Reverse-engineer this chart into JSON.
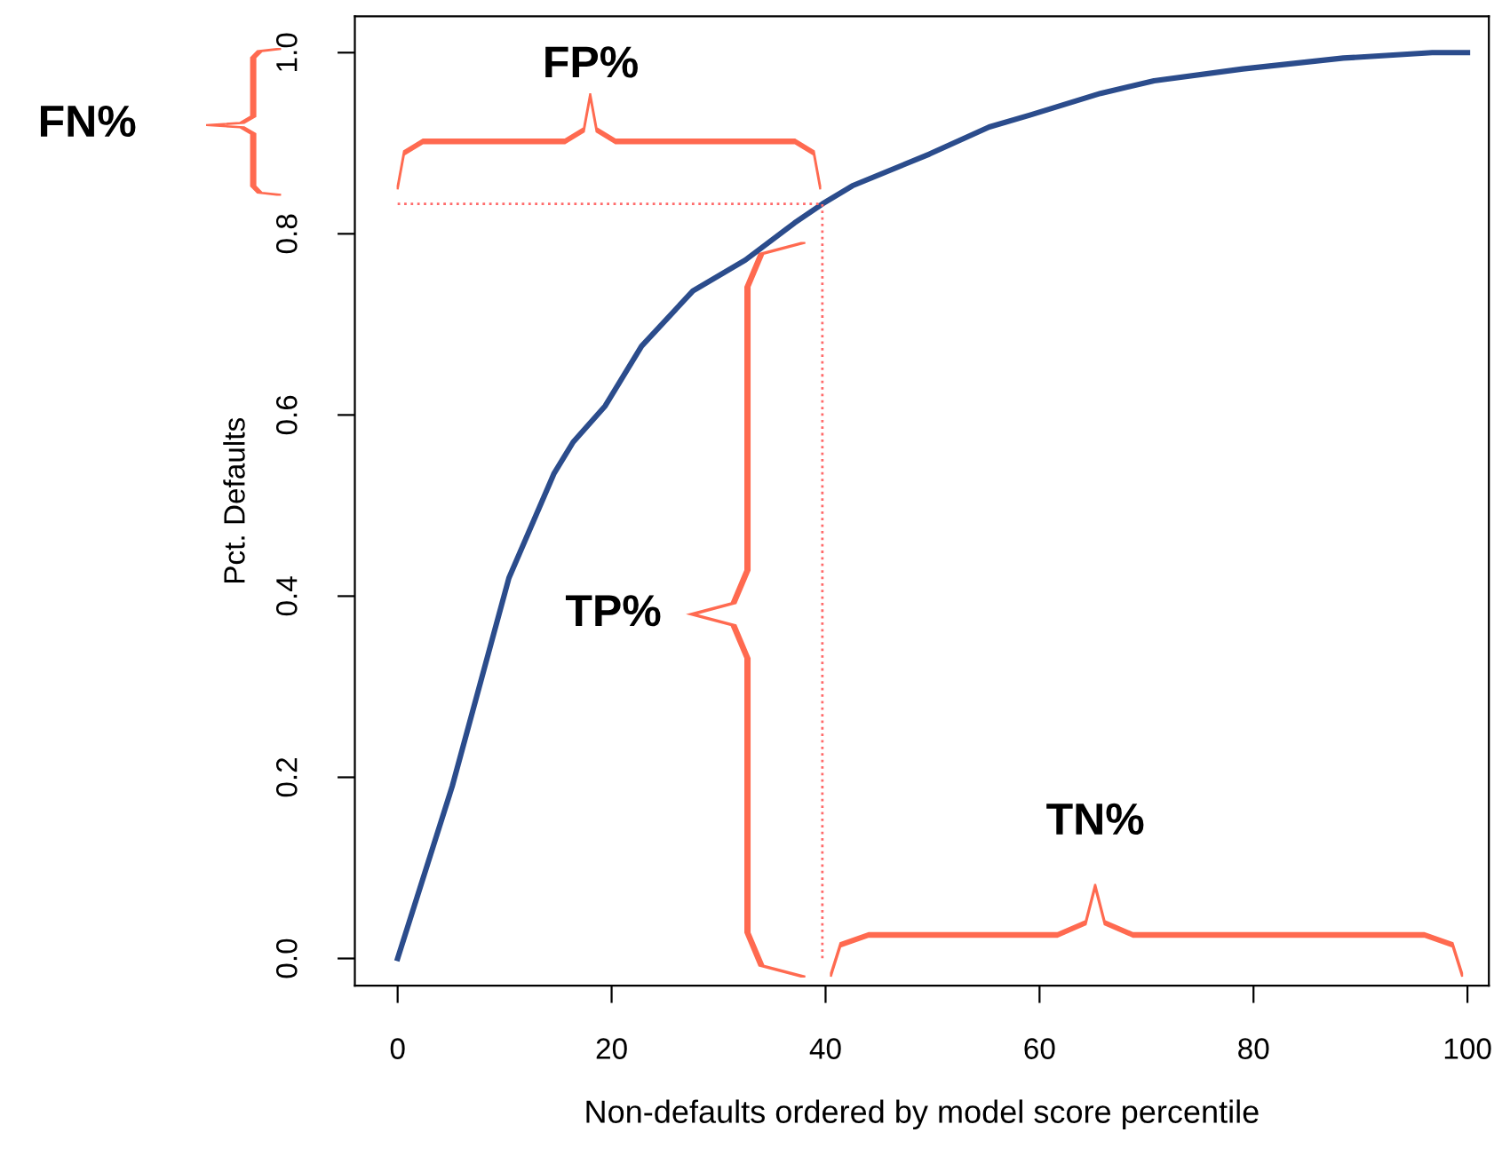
{
  "chart_data": {
    "type": "line",
    "xlabel": "Non-defaults ordered by model score percentile",
    "ylabel": "Pct. Defaults",
    "xlim": [
      -4,
      102
    ],
    "ylim": [
      -0.03,
      1.04
    ],
    "xticks": [
      0,
      20,
      40,
      60,
      80,
      100
    ],
    "yticks": [
      {
        "value": 0,
        "label": "0.0"
      },
      0.2,
      0.4,
      0.6,
      0.8,
      {
        "value": 1,
        "label": "1.0"
      }
    ],
    "grid": false,
    "legend": false,
    "series": [
      {
        "color": "#2b4c8c",
        "line_style": "solid",
        "x": [
          0,
          5.1,
          10.4,
          14.6,
          16.4,
          19.4,
          22.8,
          27.6,
          32.5,
          37.1,
          39.7,
          42.5,
          49.7,
          55.3,
          59.1,
          65.7,
          70.7,
          79,
          88.4,
          96.7,
          100
        ],
        "values": [
          0,
          0.19,
          0.42,
          0.535,
          0.57,
          0.61,
          0.676,
          0.737,
          0.771,
          0.812,
          0.833,
          0.853,
          0.888,
          0.918,
          0.931,
          0.955,
          0.969,
          0.982,
          0.994,
          1.0,
          1.0
        ]
      },
      {
        "color": "#ff6a6a",
        "line_style": "dotted",
        "x": [
          0,
          39.7,
          39.7
        ],
        "values": [
          0.833,
          0.833,
          0
        ]
      }
    ],
    "annotations": [
      "FN%",
      "FP%",
      "TP%",
      "TN%"
    ]
  }
}
